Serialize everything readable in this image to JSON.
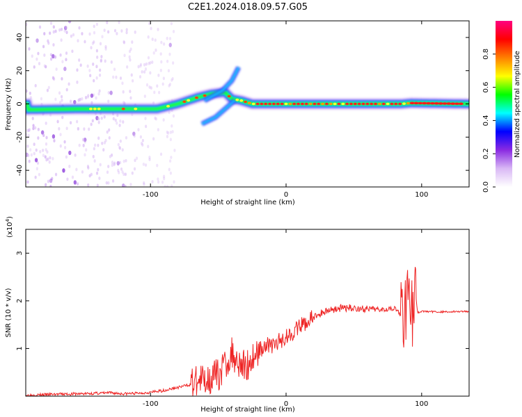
{
  "title": "C2E1.2024.018.09.57.G05",
  "chart_data": [
    {
      "type": "heatmap",
      "xlabel": "Height of straight line (km)",
      "ylabel": "Frequency (Hz)",
      "xlim": [
        -192,
        135
      ],
      "ylim": [
        -50,
        50
      ],
      "x_ticks": [
        -100,
        0,
        100
      ],
      "y_ticks": [
        -40,
        -20,
        0,
        20,
        40
      ],
      "colorbar": {
        "label": "Normalized spectral amplitude",
        "range": [
          0,
          1
        ],
        "ticks": [
          0.0,
          0.2,
          0.4,
          0.6,
          0.8
        ],
        "colormap": [
          "#ffffff",
          "#d9b8f5",
          "#8a2be2",
          "#0000ff",
          "#00ffff",
          "#00ff00",
          "#ffff00",
          "#ff8000",
          "#ff0000",
          "#ff0080"
        ]
      },
      "ridge": [
        {
          "x": -190,
          "y": -3.5
        },
        {
          "x": -150,
          "y": -3
        },
        {
          "x": -110,
          "y": -3
        },
        {
          "x": -95,
          "y": -3
        },
        {
          "x": -80,
          "y": 0
        },
        {
          "x": -65,
          "y": 4
        },
        {
          "x": -55,
          "y": 6
        },
        {
          "x": -45,
          "y": 7
        },
        {
          "x": -40,
          "y": 3
        },
        {
          "x": -33,
          "y": 2
        },
        {
          "x": -25,
          "y": 0
        },
        {
          "x": 0,
          "y": 0
        },
        {
          "x": 50,
          "y": 0
        },
        {
          "x": 85,
          "y": 0
        },
        {
          "x": 92,
          "y": 0.5
        },
        {
          "x": 135,
          "y": 0
        }
      ],
      "branches": [
        {
          "x": [
            -60,
            -47,
            -40,
            -35
          ],
          "y": [
            2,
            8,
            14,
            22
          ]
        },
        {
          "x": [
            -62,
            -52,
            -45,
            -38
          ],
          "y": [
            -12,
            -8,
            -3,
            2
          ]
        }
      ]
    },
    {
      "type": "line",
      "xlabel": "Height of straight line (km)",
      "ylabel": "SNR (10 * v/v)",
      "y_multiplier": "(x10",
      "y_multiplier_exp": "4",
      "y_multiplier_close": ")",
      "xlim": [
        -192,
        135
      ],
      "ylim": [
        0,
        3.5
      ],
      "x_ticks": [
        -100,
        0,
        100
      ],
      "y_ticks": [
        1,
        2,
        3
      ],
      "color": "#ee2222",
      "series": [
        {
          "x": [
            -192,
            -170,
            -150,
            -130,
            -120,
            -110,
            -100,
            -90,
            -80,
            -70,
            -60,
            -50,
            -45,
            -40,
            -35,
            -30,
            -25,
            -20,
            -15,
            -10,
            -5,
            0,
            10,
            20,
            30,
            40,
            50,
            60,
            70,
            80,
            85,
            88,
            91,
            93,
            95,
            97,
            100,
            110,
            120,
            135
          ],
          "y": [
            0.02,
            0.04,
            0.05,
            0.07,
            0.05,
            0.06,
            0.08,
            0.12,
            0.18,
            0.25,
            0.35,
            0.45,
            0.65,
            0.9,
            0.75,
            0.6,
            0.8,
            0.95,
            1.1,
            1.05,
            1.15,
            1.25,
            1.45,
            1.65,
            1.8,
            1.85,
            1.85,
            1.82,
            1.83,
            1.85,
            1.7,
            1.9,
            2.5,
            1.6,
            2.3,
            1.75,
            1.78,
            1.77,
            1.77,
            1.78
          ]
        }
      ]
    }
  ]
}
